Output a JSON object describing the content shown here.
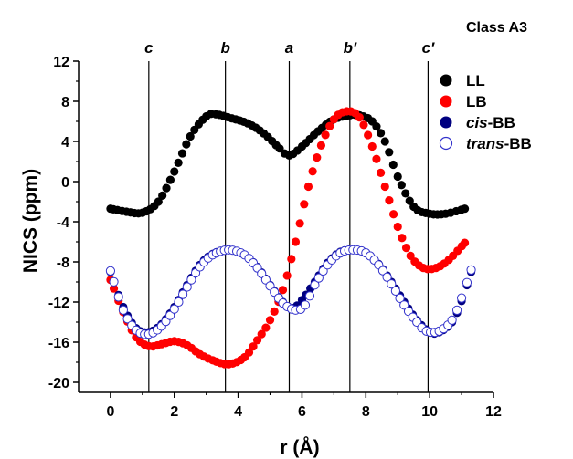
{
  "chart_data": {
    "type": "scatter",
    "title": "",
    "corner_label": "Class A3",
    "xlabel": "r (Å)",
    "ylabel": "NICS (ppm)",
    "xlim": [
      -1,
      12
    ],
    "ylim": [
      -21,
      12
    ],
    "xticks": [
      "0",
      "2",
      "4",
      "6",
      "8",
      "10",
      "12"
    ],
    "xtick_values": [
      0,
      2,
      4,
      6,
      8,
      10,
      12
    ],
    "yticks": [
      "12",
      "8",
      "4",
      "0",
      "-4",
      "-8",
      "-12",
      "-16",
      "-20"
    ],
    "ytick_values": [
      12,
      8,
      4,
      0,
      -4,
      -8,
      -12,
      -16,
      -20
    ],
    "grid": false,
    "legend_position": "top-right",
    "vertical_lines": [
      {
        "label": "c",
        "x": 1.2
      },
      {
        "label": "b",
        "x": 3.6
      },
      {
        "label": "a",
        "x": 5.6
      },
      {
        "label": "b′",
        "x": 7.5
      },
      {
        "label": "c′",
        "x": 9.95
      }
    ],
    "series": [
      {
        "name": "LL",
        "name_italic": "",
        "name_rest": "LL",
        "marker": "filled",
        "color": "#000000",
        "x": [
          0,
          0.5,
          1.0,
          1.5,
          2.0,
          2.5,
          3.0,
          3.3,
          3.8,
          4.3,
          4.8,
          5.3,
          5.6,
          6.0,
          6.5,
          7.0,
          7.5,
          7.8,
          8.2,
          8.6,
          9.0,
          9.5,
          10.0,
          10.5,
          11.1
        ],
        "y": [
          -2.7,
          -3.0,
          -3.1,
          -2.0,
          1.0,
          4.5,
          6.5,
          6.7,
          6.3,
          5.8,
          4.8,
          3.3,
          2.6,
          3.5,
          5.0,
          6.2,
          6.6,
          6.6,
          6.0,
          4.0,
          0.5,
          -2.5,
          -3.2,
          -3.2,
          -2.7
        ]
      },
      {
        "name": "LB",
        "name_italic": "",
        "name_rest": "LB",
        "marker": "filled",
        "color": "#ff0000",
        "x": [
          0,
          0.4,
          0.8,
          1.2,
          1.6,
          2.0,
          2.4,
          2.8,
          3.2,
          3.7,
          4.2,
          4.6,
          5.0,
          5.4,
          5.8,
          6.2,
          6.6,
          7.0,
          7.4,
          7.8,
          8.2,
          8.6,
          9.0,
          9.4,
          9.8,
          10.2,
          10.6,
          11.1
        ],
        "y": [
          -9.8,
          -13.0,
          -15.5,
          -16.4,
          -16.2,
          -15.9,
          -16.3,
          -17.2,
          -17.8,
          -18.2,
          -17.5,
          -15.8,
          -13.8,
          -10.8,
          -6.0,
          -0.5,
          3.6,
          6.2,
          7.0,
          6.4,
          3.5,
          -0.5,
          -4.5,
          -7.4,
          -8.6,
          -8.6,
          -7.8,
          -6.1
        ]
      },
      {
        "name": "cis-BB",
        "name_italic": "cis",
        "name_rest": "-BB",
        "marker": "filled",
        "color": "#000080",
        "x": [
          0,
          0.4,
          0.8,
          1.2,
          1.6,
          2.0,
          2.4,
          2.8,
          3.2,
          3.7,
          4.2,
          4.6,
          5.0,
          5.4,
          5.7,
          6.0,
          6.4,
          6.8,
          7.2,
          7.6,
          8.0,
          8.4,
          8.8,
          9.2,
          9.6,
          10.0,
          10.3,
          10.7,
          11.0,
          11.3
        ],
        "y": [
          -9.0,
          -12.5,
          -14.6,
          -15.0,
          -14.2,
          -12.5,
          -10.3,
          -8.3,
          -7.2,
          -6.8,
          -7.3,
          -8.5,
          -10.3,
          -12.0,
          -12.6,
          -11.8,
          -10.0,
          -8.1,
          -7.0,
          -6.8,
          -7.1,
          -8.2,
          -10.0,
          -12.0,
          -13.8,
          -15.0,
          -15.0,
          -14.0,
          -11.9,
          -9.0
        ]
      },
      {
        "name": "trans-BB",
        "name_italic": "trans",
        "name_rest": "-BB",
        "marker": "open",
        "color": "#3333cc",
        "x": [
          0,
          0.4,
          0.8,
          1.2,
          1.6,
          2.0,
          2.4,
          2.8,
          3.2,
          3.7,
          4.2,
          4.6,
          5.0,
          5.4,
          5.8,
          6.1,
          6.4,
          6.8,
          7.2,
          7.6,
          8.0,
          8.4,
          8.8,
          9.2,
          9.6,
          9.9,
          10.3,
          10.7,
          11.0,
          11.3
        ],
        "y": [
          -8.9,
          -12.8,
          -14.8,
          -15.2,
          -14.4,
          -12.7,
          -10.5,
          -8.5,
          -7.3,
          -6.8,
          -7.3,
          -8.6,
          -10.4,
          -12.1,
          -12.8,
          -12.3,
          -10.3,
          -8.3,
          -7.1,
          -6.8,
          -7.1,
          -8.3,
          -10.2,
          -12.3,
          -14.0,
          -14.9,
          -14.9,
          -13.8,
          -11.6,
          -8.8
        ]
      }
    ]
  }
}
